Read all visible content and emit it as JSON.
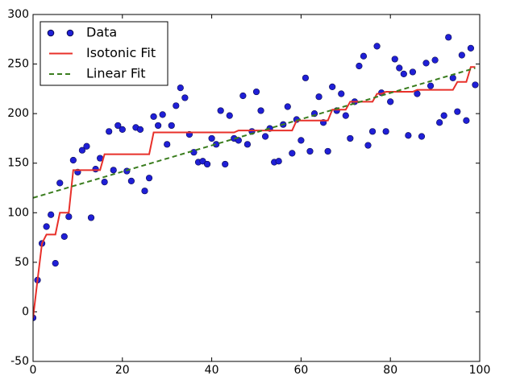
{
  "chart_data": {
    "type": "line",
    "xlim": [
      0,
      100
    ],
    "xticks": [
      0,
      20,
      40,
      60,
      80,
      100
    ],
    "ylim": [
      -50,
      300
    ],
    "yticks": [
      -50,
      0,
      50,
      100,
      150,
      200,
      250,
      300
    ],
    "legend": "upper left",
    "series": [
      {
        "name": "Data",
        "color": "#1f1fd6",
        "marker": "o",
        "x": [
          0,
          1,
          2,
          3,
          4,
          5,
          6,
          7,
          8,
          9,
          10,
          11,
          12,
          13,
          14,
          15,
          16,
          17,
          18,
          19,
          20,
          21,
          22,
          23,
          24,
          25,
          26,
          27,
          28,
          29,
          30,
          31,
          32,
          33,
          34,
          35,
          36,
          37,
          38,
          39,
          40,
          41,
          42,
          43,
          44,
          45,
          46,
          47,
          48,
          49,
          50,
          51,
          52,
          53,
          54,
          55,
          56,
          57,
          58,
          59,
          60,
          61,
          62,
          63,
          64,
          65,
          66,
          67,
          68,
          69,
          70,
          71,
          72,
          73,
          74,
          75,
          76,
          77,
          78,
          79,
          80,
          81,
          82,
          83,
          84,
          85,
          86,
          87,
          88,
          89,
          90,
          91,
          92,
          93,
          94,
          95,
          96,
          97,
          98,
          99
        ],
        "values": [
          -6,
          32,
          69,
          86,
          98,
          49,
          130,
          76,
          96,
          153,
          141,
          163,
          167,
          95,
          144,
          155,
          131,
          182,
          143,
          188,
          184,
          142,
          132,
          186,
          184,
          122,
          135,
          197,
          188,
          199,
          169,
          188,
          208,
          226,
          216,
          179,
          161,
          151,
          152,
          149,
          175,
          169,
          203,
          149,
          198,
          175,
          173,
          218,
          169,
          182,
          222,
          203,
          177,
          185,
          151,
          152,
          189,
          207,
          160,
          194,
          173,
          236,
          162,
          200,
          217,
          191,
          162,
          227,
          203,
          220,
          198,
          175,
          212,
          248,
          258,
          168,
          182,
          268,
          221,
          182,
          212,
          255,
          246,
          240,
          178,
          242,
          220,
          177,
          251,
          228,
          254,
          191,
          198,
          277,
          236,
          202,
          259,
          193,
          266,
          229
        ]
      },
      {
        "name": "Isotonic Fit",
        "color": "#e8302a",
        "linestyle": "solid",
        "x": [
          0,
          1,
          2,
          3,
          4,
          5,
          6,
          7,
          8,
          9,
          10,
          11,
          12,
          13,
          14,
          15,
          16,
          17,
          18,
          19,
          20,
          21,
          22,
          23,
          24,
          25,
          26,
          27,
          28,
          29,
          30,
          31,
          32,
          33,
          34,
          35,
          36,
          37,
          38,
          39,
          40,
          41,
          42,
          43,
          44,
          45,
          46,
          47,
          48,
          49,
          50,
          51,
          52,
          53,
          54,
          55,
          56,
          57,
          58,
          59,
          60,
          61,
          62,
          63,
          64,
          65,
          66,
          67,
          68,
          69,
          70,
          71,
          72,
          73,
          74,
          75,
          76,
          77,
          78,
          79,
          80,
          81,
          82,
          83,
          84,
          85,
          86,
          87,
          88,
          89,
          90,
          91,
          92,
          93,
          94,
          95,
          96,
          97,
          98,
          99
        ],
        "values": [
          -6,
          32,
          69,
          78,
          78,
          78,
          100,
          100,
          100,
          143,
          143,
          143,
          143,
          143,
          143,
          143,
          159,
          159,
          159,
          159,
          159,
          159,
          159,
          159,
          159,
          159,
          159,
          181,
          181,
          181,
          181,
          181,
          181,
          181,
          181,
          181,
          181,
          181,
          181,
          181,
          181,
          181,
          181,
          181,
          181,
          181,
          183,
          183,
          183,
          183,
          183,
          183,
          183,
          183,
          183,
          183,
          183,
          183,
          183,
          193,
          193,
          193,
          193,
          193,
          193,
          193,
          193,
          204,
          204,
          204,
          204,
          212,
          212,
          212,
          212,
          212,
          212,
          220,
          220,
          222,
          222,
          222,
          222,
          222,
          222,
          222,
          224,
          224,
          224,
          224,
          224,
          224,
          224,
          224,
          224,
          232,
          232,
          232,
          247,
          247
        ]
      },
      {
        "name": "Linear Fit",
        "color": "#3a7d1e",
        "linestyle": "dashed",
        "x": [
          0,
          99
        ],
        "values": [
          115,
          246
        ]
      }
    ]
  }
}
